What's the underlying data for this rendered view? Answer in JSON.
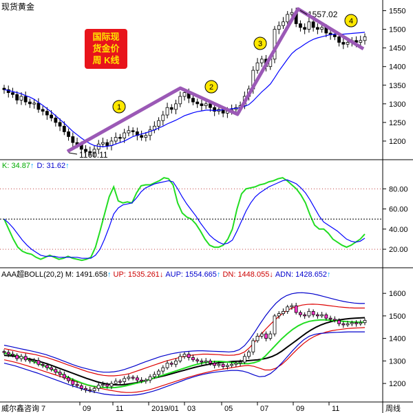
{
  "window_title": "现货黄金",
  "badge": {
    "line1": "国际现",
    "line2": "货金价",
    "line3": "周 K线",
    "bg": "#e8141b",
    "fg": "#ffe400"
  },
  "annotations": {
    "wave_labels": [
      "1",
      "2",
      "3",
      "4"
    ],
    "low_label": "1160.11",
    "high_label": "1557.02",
    "wave_color": "#9b59b6",
    "circle_fill": "#ffe800"
  },
  "footer": {
    "source": "威尔鑫咨询 7",
    "months": [
      "09",
      "11",
      "2019/01",
      "03",
      "05",
      "07",
      "09",
      "11"
    ],
    "period": "周线"
  },
  "kd_header": {
    "k_label": "K: 34.87",
    "k_arrow": "↑",
    "d_label": "D: 31.62",
    "d_arrow": "↑"
  },
  "boll_header": {
    "name": "AAA超BOLL(20,2)",
    "m_label": "M: 1491.658",
    "m_arrow": "↑",
    "up_label": "UP: 1535.261",
    "up_arrow": "↓",
    "aup_label": "AUP: 1554.665",
    "aup_arrow": "↑",
    "dn_label": "DN: 1448.055",
    "dn_arrow": "↓",
    "adn_label": "ADN: 1428.652",
    "adn_arrow": "↑"
  },
  "chart_data": [
    {
      "type": "candlestick",
      "title": "现货黄金",
      "y_ticks": [
        "1550",
        "1500",
        "1450",
        "1400",
        "1350",
        "1300",
        "1250",
        "1200"
      ],
      "ylim": [
        1150,
        1575
      ],
      "close": [
        1338,
        1330,
        1325,
        1310,
        1320,
        1305,
        1300,
        1302,
        1285,
        1280,
        1270,
        1262,
        1250,
        1240,
        1225,
        1212,
        1196,
        1190,
        1178,
        1172,
        1168,
        1178,
        1192,
        1196,
        1188,
        1200,
        1210,
        1208,
        1222,
        1228,
        1225,
        1215,
        1210,
        1215,
        1230,
        1240,
        1255,
        1270,
        1290,
        1285,
        1300,
        1320,
        1330,
        1315,
        1305,
        1300,
        1295,
        1300,
        1290,
        1280,
        1285,
        1275,
        1280,
        1285,
        1290,
        1295,
        1320,
        1340,
        1390,
        1410,
        1420,
        1400,
        1420,
        1500,
        1510,
        1520,
        1540,
        1545,
        1515,
        1505,
        1500,
        1520,
        1505,
        1500,
        1505,
        1490,
        1485,
        1480,
        1465,
        1460,
        1465,
        1470,
        1465,
        1470,
        1480
      ],
      "series": [
        {
          "name": "MA",
          "color": "#0000ff",
          "values": [
            1338,
            1336,
            1333,
            1330,
            1327,
            1322,
            1318,
            1312,
            1304,
            1296,
            1287,
            1278,
            1268,
            1258,
            1248,
            1237,
            1226,
            1217,
            1208,
            1200,
            1193,
            1188,
            1186,
            1185,
            1186,
            1188,
            1192,
            1196,
            1200,
            1206,
            1212,
            1216,
            1219,
            1222,
            1226,
            1230,
            1235,
            1240,
            1246,
            1251,
            1256,
            1262,
            1268,
            1272,
            1276,
            1279,
            1281,
            1283,
            1283,
            1282,
            1283,
            1284,
            1285,
            1287,
            1288,
            1289,
            1293,
            1298,
            1308,
            1320,
            1332,
            1342,
            1353,
            1370,
            1388,
            1404,
            1420,
            1435,
            1445,
            1452,
            1460,
            1467,
            1473,
            1477,
            1480,
            1483,
            1486,
            1487,
            1487,
            1487,
            1488,
            1489,
            1490,
            1491,
            1492
          ]
        }
      ]
    },
    {
      "type": "line",
      "title": "KD",
      "y_ticks": [
        "80.00",
        "60.00",
        "40.00",
        "20.00"
      ],
      "ylim": [
        5,
        98
      ],
      "series": [
        {
          "name": "K",
          "color": "#22dd22",
          "values": [
            50,
            40,
            30,
            22,
            18,
            16,
            15,
            12,
            10,
            12,
            14,
            12,
            10,
            11,
            13,
            11,
            10,
            9,
            10,
            12,
            22,
            38,
            55,
            72,
            82,
            68,
            66,
            67,
            66,
            76,
            83,
            84,
            84,
            86,
            88,
            91,
            90,
            84,
            66,
            56,
            52,
            50,
            45,
            38,
            30,
            24,
            22,
            22,
            24,
            30,
            40,
            60,
            75,
            80,
            81,
            82,
            84,
            85,
            87,
            88,
            90,
            91,
            88,
            84,
            80,
            74,
            66,
            54,
            44,
            40,
            40,
            36,
            30,
            27,
            24,
            22,
            24,
            27,
            30,
            35
          ]
        },
        {
          "name": "D",
          "color": "#0000ff",
          "values": [
            50,
            46,
            41,
            35,
            29,
            24,
            20,
            17,
            14,
            13,
            13,
            13,
            12,
            12,
            12,
            12,
            12,
            11,
            11,
            11,
            14,
            20,
            30,
            42,
            55,
            61,
            64,
            65,
            66,
            71,
            77,
            81,
            83,
            85,
            86,
            87,
            88,
            87,
            80,
            72,
            65,
            59,
            53,
            46,
            40,
            34,
            30,
            27,
            25,
            26,
            29,
            38,
            48,
            58,
            66,
            72,
            76,
            79,
            82,
            84,
            86,
            88,
            89,
            87,
            85,
            81,
            76,
            69,
            61,
            53,
            47,
            44,
            41,
            38,
            34,
            30,
            28,
            27,
            28,
            31
          ]
        }
      ]
    },
    {
      "type": "candlestick",
      "title": "AAA超BOLL(20,2)",
      "y_ticks": [
        "1600",
        "1500",
        "1400",
        "1300",
        "1200"
      ],
      "ylim": [
        1130,
        1680
      ],
      "series": [
        {
          "name": "M",
          "color": "#000000",
          "values": [
            1325,
            1323,
            1321,
            1318,
            1314,
            1310,
            1305,
            1299,
            1293,
            1286,
            1278,
            1270,
            1262,
            1254,
            1246,
            1238,
            1230,
            1222,
            1215,
            1208,
            1202,
            1198,
            1195,
            1194,
            1194,
            1196,
            1199,
            1203,
            1208,
            1213,
            1219,
            1225,
            1230,
            1235,
            1241,
            1247,
            1253,
            1259,
            1265,
            1271,
            1276,
            1281,
            1285,
            1289,
            1292,
            1294,
            1296,
            1298,
            1299,
            1300,
            1301,
            1303,
            1305,
            1308,
            1313,
            1320,
            1330,
            1344,
            1360,
            1376,
            1392,
            1408,
            1424,
            1438,
            1450,
            1460,
            1468,
            1474,
            1479,
            1483,
            1486,
            1488,
            1490,
            1491,
            1492
          ]
        },
        {
          "name": "UP",
          "color": "#dd0000",
          "values": [
            1355,
            1350,
            1345,
            1340,
            1336,
            1332,
            1328,
            1322,
            1316,
            1309,
            1301,
            1293,
            1284,
            1276,
            1268,
            1260,
            1252,
            1246,
            1240,
            1236,
            1234,
            1234,
            1236,
            1239,
            1244,
            1252,
            1260,
            1268,
            1276,
            1284,
            1292,
            1300,
            1306,
            1312,
            1318,
            1322,
            1326,
            1328,
            1330,
            1330,
            1329,
            1328,
            1326,
            1325,
            1326,
            1330,
            1340,
            1360,
            1386,
            1414,
            1440,
            1464,
            1486,
            1506,
            1522,
            1534,
            1542,
            1548,
            1551,
            1552,
            1551,
            1549,
            1546,
            1543,
            1540,
            1538,
            1536,
            1535,
            1535,
            1535
          ]
        },
        {
          "name": "DN",
          "color": "#dd0000",
          "values": [
            1305,
            1300,
            1294,
            1287,
            1280,
            1272,
            1264,
            1256,
            1248,
            1240,
            1232,
            1224,
            1216,
            1208,
            1200,
            1192,
            1186,
            1180,
            1175,
            1170,
            1166,
            1162,
            1160,
            1160,
            1162,
            1166,
            1171,
            1178,
            1186,
            1194,
            1202,
            1210,
            1218,
            1226,
            1233,
            1240,
            1246,
            1252,
            1258,
            1262,
            1266,
            1270,
            1274,
            1278,
            1280,
            1276,
            1268,
            1260,
            1260,
            1268,
            1284,
            1306,
            1332,
            1356,
            1378,
            1396,
            1410,
            1420,
            1428,
            1434,
            1438,
            1441,
            1444,
            1446,
            1447,
            1448
          ]
        },
        {
          "name": "AUP",
          "color": "#0000cc",
          "values": [
            1370,
            1365,
            1360,
            1355,
            1350,
            1345,
            1340,
            1334,
            1328,
            1320,
            1312,
            1303,
            1294,
            1285,
            1277,
            1270,
            1264,
            1258,
            1253,
            1250,
            1250,
            1252,
            1256,
            1262,
            1270,
            1278,
            1287,
            1296,
            1304,
            1312,
            1320,
            1326,
            1332,
            1336,
            1340,
            1342,
            1344,
            1345,
            1345,
            1344,
            1343,
            1342,
            1341,
            1340,
            1342,
            1350,
            1368,
            1396,
            1430,
            1466,
            1500,
            1530,
            1556,
            1576,
            1590,
            1598,
            1602,
            1603,
            1601,
            1598,
            1593,
            1587,
            1581,
            1575,
            1569,
            1564,
            1560,
            1557,
            1555,
            1555
          ]
        },
        {
          "name": "ADN",
          "color": "#0000cc",
          "values": [
            1290,
            1284,
            1278,
            1270,
            1262,
            1254,
            1246,
            1237,
            1228,
            1219,
            1210,
            1201,
            1192,
            1184,
            1176,
            1169,
            1163,
            1158,
            1153,
            1150,
            1148,
            1147,
            1147,
            1148,
            1150,
            1154,
            1160,
            1167,
            1175,
            1184,
            1193,
            1202,
            1211,
            1220,
            1228,
            1235,
            1241,
            1246,
            1250,
            1253,
            1256,
            1258,
            1258,
            1255,
            1248,
            1238,
            1230,
            1232,
            1244,
            1264,
            1290,
            1318,
            1346,
            1372,
            1394,
            1410,
            1418,
            1422,
            1424,
            1426,
            1427,
            1428,
            1429,
            1429,
            1429,
            1429
          ]
        },
        {
          "name": "MID",
          "color": "#22dd22",
          "values": [
            1335,
            1330,
            1325,
            1318,
            1310,
            1300,
            1290,
            1280,
            1270,
            1258,
            1246,
            1234,
            1222,
            1212,
            1202,
            1194,
            1188,
            1184,
            1182,
            1181,
            1182,
            1185,
            1190,
            1196,
            1202,
            1208,
            1216,
            1224,
            1232,
            1240,
            1248,
            1256,
            1264,
            1272,
            1280,
            1286,
            1292,
            1296,
            1298,
            1298,
            1296,
            1293,
            1290,
            1288,
            1288,
            1292,
            1300,
            1320,
            1346,
            1372,
            1398,
            1420,
            1440,
            1456,
            1468,
            1476,
            1480,
            1482,
            1482,
            1480,
            1478,
            1476,
            1474,
            1473,
            1472,
            1472
          ]
        }
      ]
    }
  ]
}
